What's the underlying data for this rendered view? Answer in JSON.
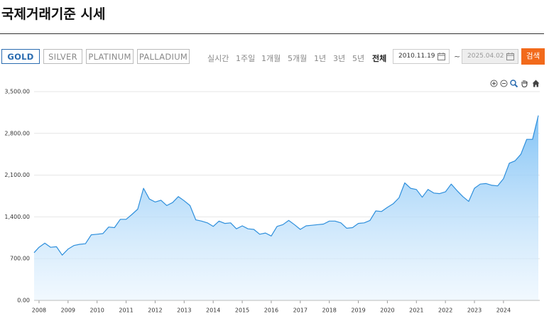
{
  "header": {
    "title": "국제거래기준 시세"
  },
  "tabs": [
    "GOLD",
    "SILVER",
    "PLATINUM",
    "PALLADIUM"
  ],
  "periods": [
    "실시간",
    "1주일",
    "1개월",
    "5개월",
    "1년",
    "3년",
    "5년",
    "전체"
  ],
  "date_from": "2010.11.19",
  "separator": "~",
  "date_to": "2025.04.02",
  "search_button": "검색",
  "chart_data": {
    "type": "area",
    "color": "#2e8fdc",
    "grid": true,
    "xlim": [
      2007.83,
      2025.25
    ],
    "xticks": [
      2008,
      2009,
      2010,
      2011,
      2012,
      2013,
      2014,
      2015,
      2016,
      2017,
      2018,
      2019,
      2020,
      2021,
      2022,
      2023,
      2024
    ],
    "ylim": [
      0,
      3500
    ],
    "yticks": [
      {
        "value": 0,
        "label": "0.00"
      },
      {
        "value": 700,
        "label": "700.00"
      },
      {
        "value": 1400,
        "label": "1,400.00"
      },
      {
        "value": 2100,
        "label": "2,100.00"
      },
      {
        "value": 2800,
        "label": "2,800.00"
      },
      {
        "value": 3500,
        "label": "3,500.00"
      }
    ],
    "x": [
      2007.83,
      2008.0,
      2008.2,
      2008.4,
      2008.6,
      2008.8,
      2009.0,
      2009.2,
      2009.4,
      2009.6,
      2009.8,
      2010.0,
      2010.2,
      2010.4,
      2010.6,
      2010.8,
      2011.0,
      2011.2,
      2011.4,
      2011.6,
      2011.8,
      2012.0,
      2012.2,
      2012.4,
      2012.6,
      2012.8,
      2013.0,
      2013.2,
      2013.4,
      2013.6,
      2013.8,
      2014.0,
      2014.2,
      2014.4,
      2014.6,
      2014.8,
      2015.0,
      2015.2,
      2015.4,
      2015.6,
      2015.8,
      2016.0,
      2016.2,
      2016.4,
      2016.6,
      2016.8,
      2017.0,
      2017.2,
      2017.4,
      2017.6,
      2017.8,
      2018.0,
      2018.2,
      2018.4,
      2018.6,
      2018.8,
      2019.0,
      2019.2,
      2019.4,
      2019.6,
      2019.8,
      2020.0,
      2020.2,
      2020.4,
      2020.6,
      2020.8,
      2021.0,
      2021.2,
      2021.4,
      2021.6,
      2021.8,
      2022.0,
      2022.2,
      2022.4,
      2022.6,
      2022.8,
      2023.0,
      2023.2,
      2023.4,
      2023.6,
      2023.8,
      2024.0,
      2024.2,
      2024.4,
      2024.6,
      2024.8,
      2025.0,
      2025.2
    ],
    "values": [
      800,
      890,
      960,
      890,
      900,
      760,
      860,
      920,
      940,
      950,
      1100,
      1110,
      1120,
      1230,
      1220,
      1360,
      1360,
      1440,
      1530,
      1880,
      1700,
      1650,
      1680,
      1590,
      1640,
      1740,
      1670,
      1590,
      1350,
      1330,
      1300,
      1240,
      1330,
      1290,
      1300,
      1200,
      1250,
      1200,
      1190,
      1110,
      1130,
      1080,
      1240,
      1270,
      1340,
      1270,
      1190,
      1250,
      1260,
      1270,
      1280,
      1330,
      1330,
      1300,
      1210,
      1220,
      1290,
      1300,
      1340,
      1500,
      1490,
      1560,
      1620,
      1720,
      1970,
      1880,
      1860,
      1730,
      1860,
      1800,
      1790,
      1820,
      1950,
      1840,
      1740,
      1660,
      1880,
      1950,
      1960,
      1930,
      1920,
      2040,
      2300,
      2340,
      2450,
      2700,
      2700,
      3100
    ]
  }
}
